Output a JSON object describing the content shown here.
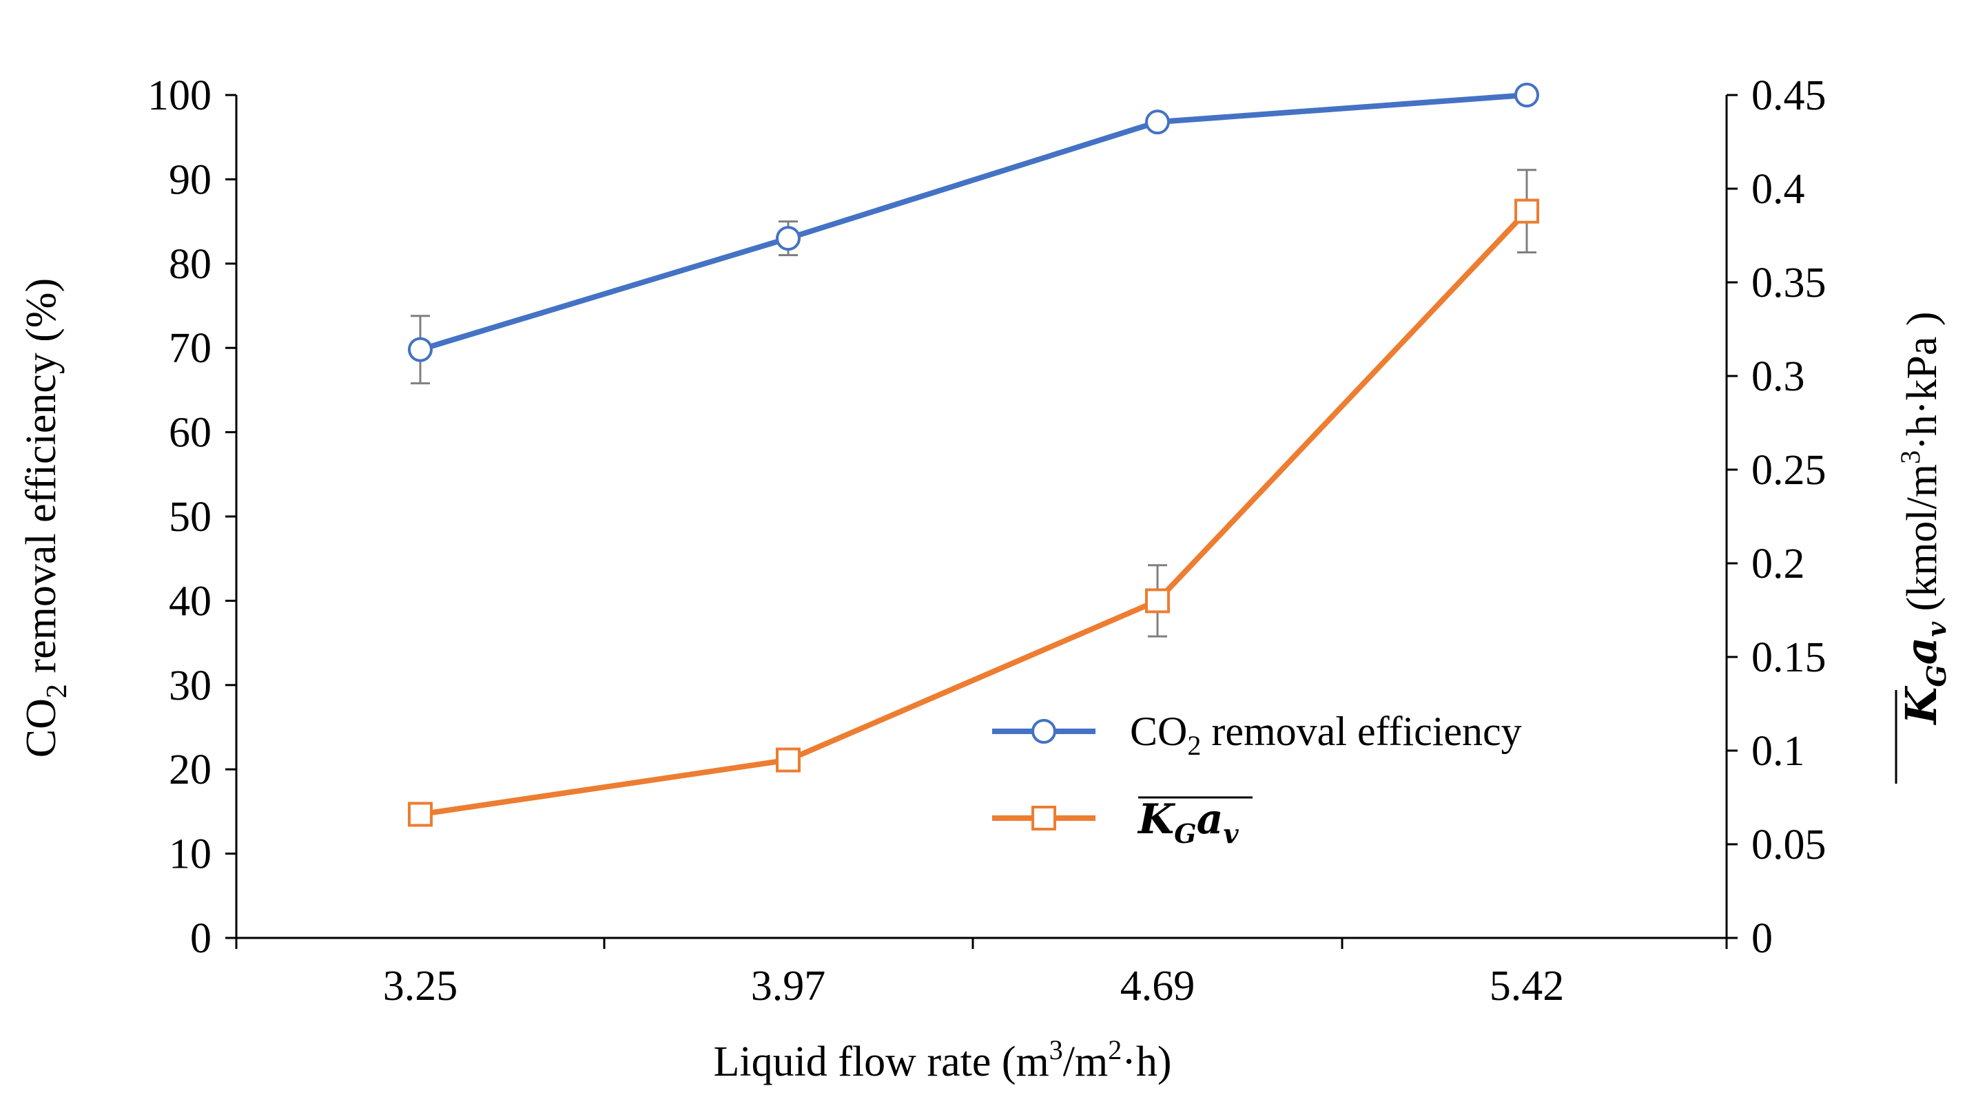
{
  "chart_data": {
    "type": "line",
    "title": "",
    "x": [
      "3.25",
      "3.97",
      "4.69",
      "5.42"
    ],
    "xlabel_main": "Liquid flow rate (m",
    "xlabel_sup1": "3",
    "xlabel_mid": "/m",
    "xlabel_sup2": "2",
    "xlabel_end": "·h)",
    "y_left": {
      "label_pre": "CO",
      "label_sub": "2",
      "label_post": " removal efficiency (%)",
      "ylim": [
        0,
        100
      ],
      "ticks": [
        "0",
        "10",
        "20",
        "30",
        "40",
        "50",
        "60",
        "70",
        "80",
        "90",
        "100"
      ]
    },
    "y_right": {
      "label_symbol": "K",
      "label_symbol_sub": "G",
      "label_symbol2": "a",
      "label_symbol2_sub": "v",
      "label_units_pre": "(kmol/m",
      "label_units_sup": "3",
      "label_units_post": "·h·kPa )",
      "ylim": [
        0,
        0.45
      ],
      "ticks": [
        "0",
        "0.05",
        "0.1",
        "0.15",
        "0.2",
        "0.25",
        "0.3",
        "0.35",
        "0.4",
        "0.45"
      ]
    },
    "series": [
      {
        "name": "CO2 removal efficiency",
        "axis": "left",
        "color": "#4472C4",
        "marker": "circle",
        "values": [
          69.8,
          83.0,
          96.8,
          100.0
        ],
        "errors": [
          4.0,
          2.0,
          0.8,
          0.0
        ]
      },
      {
        "name": "KGav",
        "axis": "right",
        "color": "#ED7D31",
        "marker": "square",
        "values": [
          0.066,
          0.095,
          0.18,
          0.388
        ],
        "errors": [
          0.0,
          0.0,
          0.019,
          0.022
        ]
      }
    ],
    "legend": {
      "position": "center-right",
      "entry1_pre": "CO",
      "entry1_sub": "2",
      "entry1_post": " removal efficiency",
      "entry2_symbol": "K",
      "entry2_symbol_sub": "G",
      "entry2_symbol2": "a",
      "entry2_symbol2_sub": "v"
    },
    "error_bar_color": "#7f7f7f"
  }
}
